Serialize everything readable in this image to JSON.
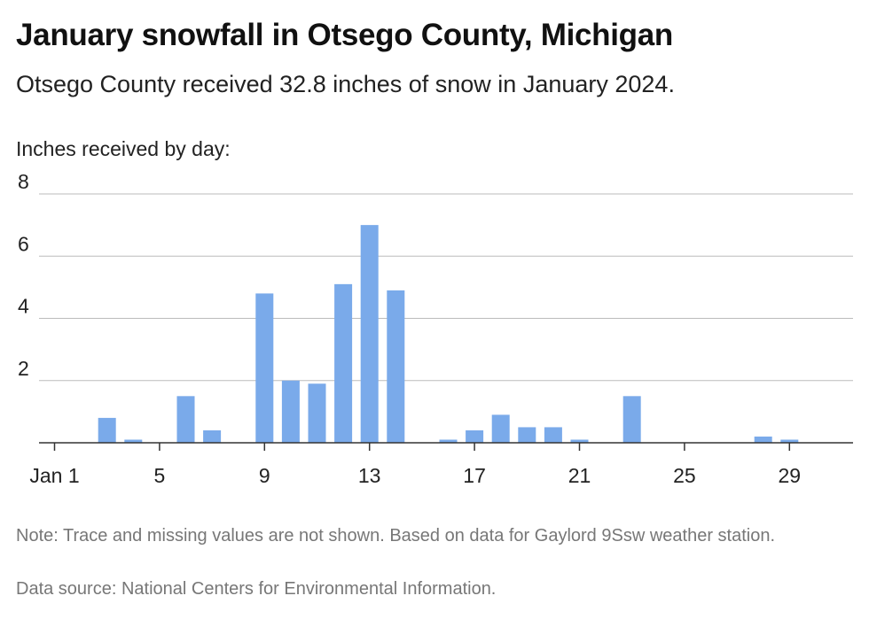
{
  "title": "January snowfall in Otsego County, Michigan",
  "subtitle": "Otsego County received 32.8 inches of snow in January 2024.",
  "note": "Note: Trace and missing values are not shown. Based on data for Gaylord 9Ssw weather station.",
  "source": "Data source: National Centers for Environmental Information.",
  "colors": {
    "bar": "#7aaaea",
    "grid": "#bbbbbb",
    "axis": "#333333"
  },
  "chart_data": {
    "type": "bar",
    "title": "January snowfall in Otsego County, Michigan",
    "ylabel": "Inches received by day:",
    "xlabel": "",
    "ylim": [
      0,
      8
    ],
    "yticks": [
      2,
      4,
      6,
      8
    ],
    "xlim": [
      1,
      31
    ],
    "xtick_labels": [
      {
        "day": 1,
        "label": "Jan 1"
      },
      {
        "day": 5,
        "label": "5"
      },
      {
        "day": 9,
        "label": "9"
      },
      {
        "day": 13,
        "label": "13"
      },
      {
        "day": 17,
        "label": "17"
      },
      {
        "day": 21,
        "label": "21"
      },
      {
        "day": 25,
        "label": "25"
      },
      {
        "day": 29,
        "label": "29"
      }
    ],
    "grid": true,
    "points": [
      {
        "day": 3,
        "value": 0.8
      },
      {
        "day": 4,
        "value": 0.1
      },
      {
        "day": 6,
        "value": 1.5
      },
      {
        "day": 7,
        "value": 0.4
      },
      {
        "day": 9,
        "value": 4.8
      },
      {
        "day": 10,
        "value": 2.0
      },
      {
        "day": 11,
        "value": 1.9
      },
      {
        "day": 12,
        "value": 5.1
      },
      {
        "day": 13,
        "value": 7.0
      },
      {
        "day": 14,
        "value": 4.9
      },
      {
        "day": 16,
        "value": 0.1
      },
      {
        "day": 17,
        "value": 0.4
      },
      {
        "day": 18,
        "value": 0.9
      },
      {
        "day": 19,
        "value": 0.5
      },
      {
        "day": 20,
        "value": 0.5
      },
      {
        "day": 21,
        "value": 0.1
      },
      {
        "day": 23,
        "value": 1.5
      },
      {
        "day": 28,
        "value": 0.2
      },
      {
        "day": 29,
        "value": 0.1
      }
    ]
  }
}
